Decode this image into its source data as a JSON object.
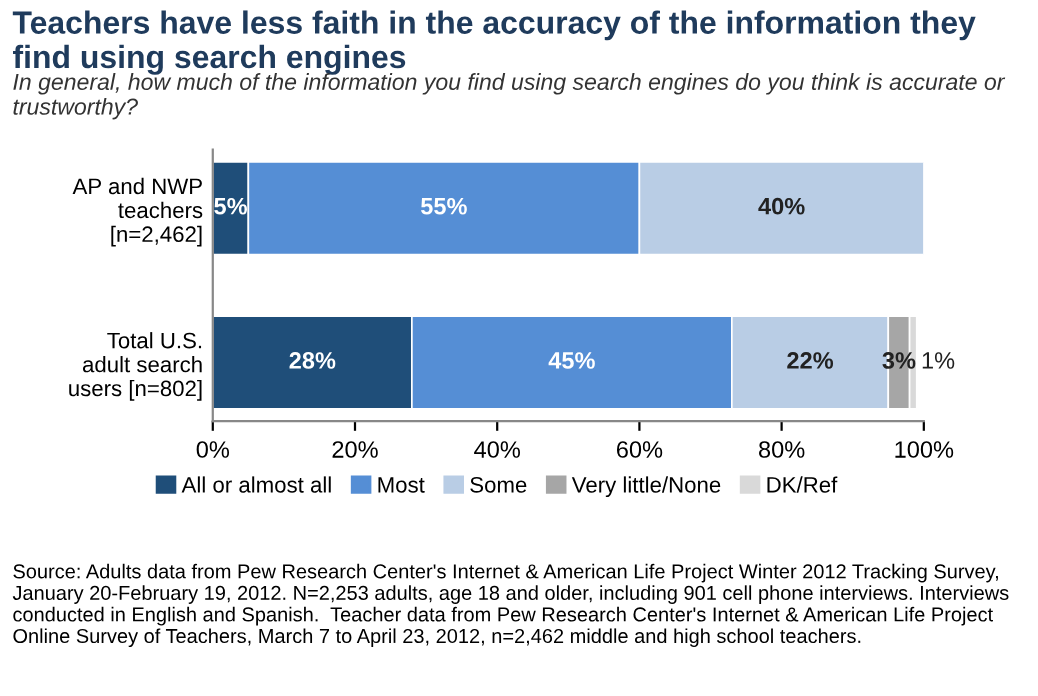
{
  "chart_data": {
    "type": "bar",
    "orientation": "horizontal",
    "stacked": true,
    "title": "Teachers have less faith in the accuracy of the information they find using search engines",
    "subtitle": "In general, how much of the information you find using search engines do you think is accurate or trustworthy?",
    "categories": [
      "AP and NWP\nteachers\n[n=2,462]",
      "Total U.S.\nadult search\nusers [n=802]"
    ],
    "series": [
      {
        "name": "All or almost all",
        "color": "#1f4e79",
        "values": [
          5,
          28
        ],
        "value_labels": [
          "5%",
          "28%"
        ]
      },
      {
        "name": "Most",
        "color": "#558ed5",
        "values": [
          55,
          45
        ],
        "value_labels": [
          "55%",
          "45%"
        ]
      },
      {
        "name": "Some",
        "color": "#b9cde5",
        "values": [
          40,
          22
        ],
        "value_labels": [
          "40%",
          "22%"
        ]
      },
      {
        "name": "Very little/None",
        "color": "#a6a6a6",
        "values": [
          null,
          3
        ],
        "value_labels": [
          null,
          "3%"
        ]
      },
      {
        "name": "DK/Ref",
        "color": "#d9d9d9",
        "values": [
          null,
          1
        ],
        "value_labels": [
          null,
          "1%"
        ]
      }
    ],
    "xlim": [
      0,
      100
    ],
    "xticks": [
      {
        "value": 0,
        "label": "0%"
      },
      {
        "value": 20,
        "label": "20%"
      },
      {
        "value": 40,
        "label": "40%"
      },
      {
        "value": 60,
        "label": "60%"
      },
      {
        "value": 80,
        "label": "80%"
      },
      {
        "value": 100,
        "label": "100%"
      }
    ],
    "legend": "bottom",
    "annotations": [
      "Source: Adults data from Pew Research Center's Internet & American Life Project Winter 2012 Tracking Survey, January 20-February 19, 2012. N=2,253 adults, age 18 and older, including 901 cell phone interviews. Interviews conducted in English and Spanish.  Teacher data from Pew Research Center's Internet & American Life Project Online Survey of Teachers, March 7 to April 23, 2012, n=2,462 middle and high school teachers."
    ]
  }
}
